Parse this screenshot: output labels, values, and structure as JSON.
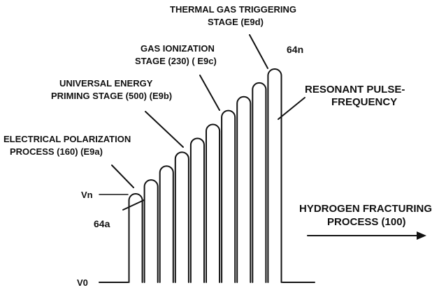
{
  "diagram": {
    "labels": {
      "thermal_gas": [
        "THERMAL GAS TRIGGERING",
        "STAGE (E9d)"
      ],
      "gas_ionization": [
        "GAS IONIZATION",
        "STAGE (230) ( E9c)"
      ],
      "universal_energy": [
        "UNIVERSAL ENERGY",
        "PRIMING STAGE (500)  (E9b)"
      ],
      "electrical_polarization": [
        "ELECTRICAL POLARIZATION",
        "PROCESS (160) (E9a)"
      ],
      "resonant": [
        "RESONANT PULSE-",
        "FREQUENCY"
      ],
      "hydrogen": [
        "HYDROGEN FRACTURING",
        "PROCESS (100)"
      ],
      "pulse_first": "64a",
      "pulse_last": "64n",
      "vn": "Vn",
      "v0": "V0"
    },
    "pulses": {
      "count": 10,
      "levels": [
        1,
        2,
        3,
        4,
        5,
        6,
        7,
        8,
        9,
        10
      ]
    },
    "colors": {
      "ink": "#111111",
      "background": "#ffffff"
    }
  }
}
